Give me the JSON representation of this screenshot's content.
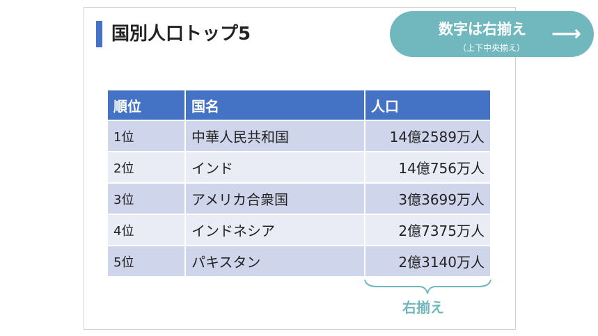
{
  "slide": {
    "title": "国別人口トップ5",
    "callout": {
      "main": "数字は右揃え",
      "sub": "（上下中央揃え）",
      "arrow": "⟶"
    },
    "table": {
      "headers": [
        "順位",
        "国名",
        "人口"
      ],
      "rows": [
        {
          "rank": "1位",
          "country": "中華人民共和国",
          "population": "14億2589万人"
        },
        {
          "rank": "2位",
          "country": "インド",
          "population": "14億756万人"
        },
        {
          "rank": "3位",
          "country": "アメリカ合衆国",
          "population": "3億3699万人"
        },
        {
          "rank": "4位",
          "country": "インドネシア",
          "population": "2億7375万人"
        },
        {
          "rank": "5位",
          "country": "パキスタン",
          "population": "2億3140万人"
        }
      ]
    },
    "brace_label": "右揃え",
    "colors": {
      "accent": "#4472c4",
      "teal": "#70b8bd",
      "row_odd": "#cfd5ea",
      "row_even": "#e9ebf5"
    }
  }
}
